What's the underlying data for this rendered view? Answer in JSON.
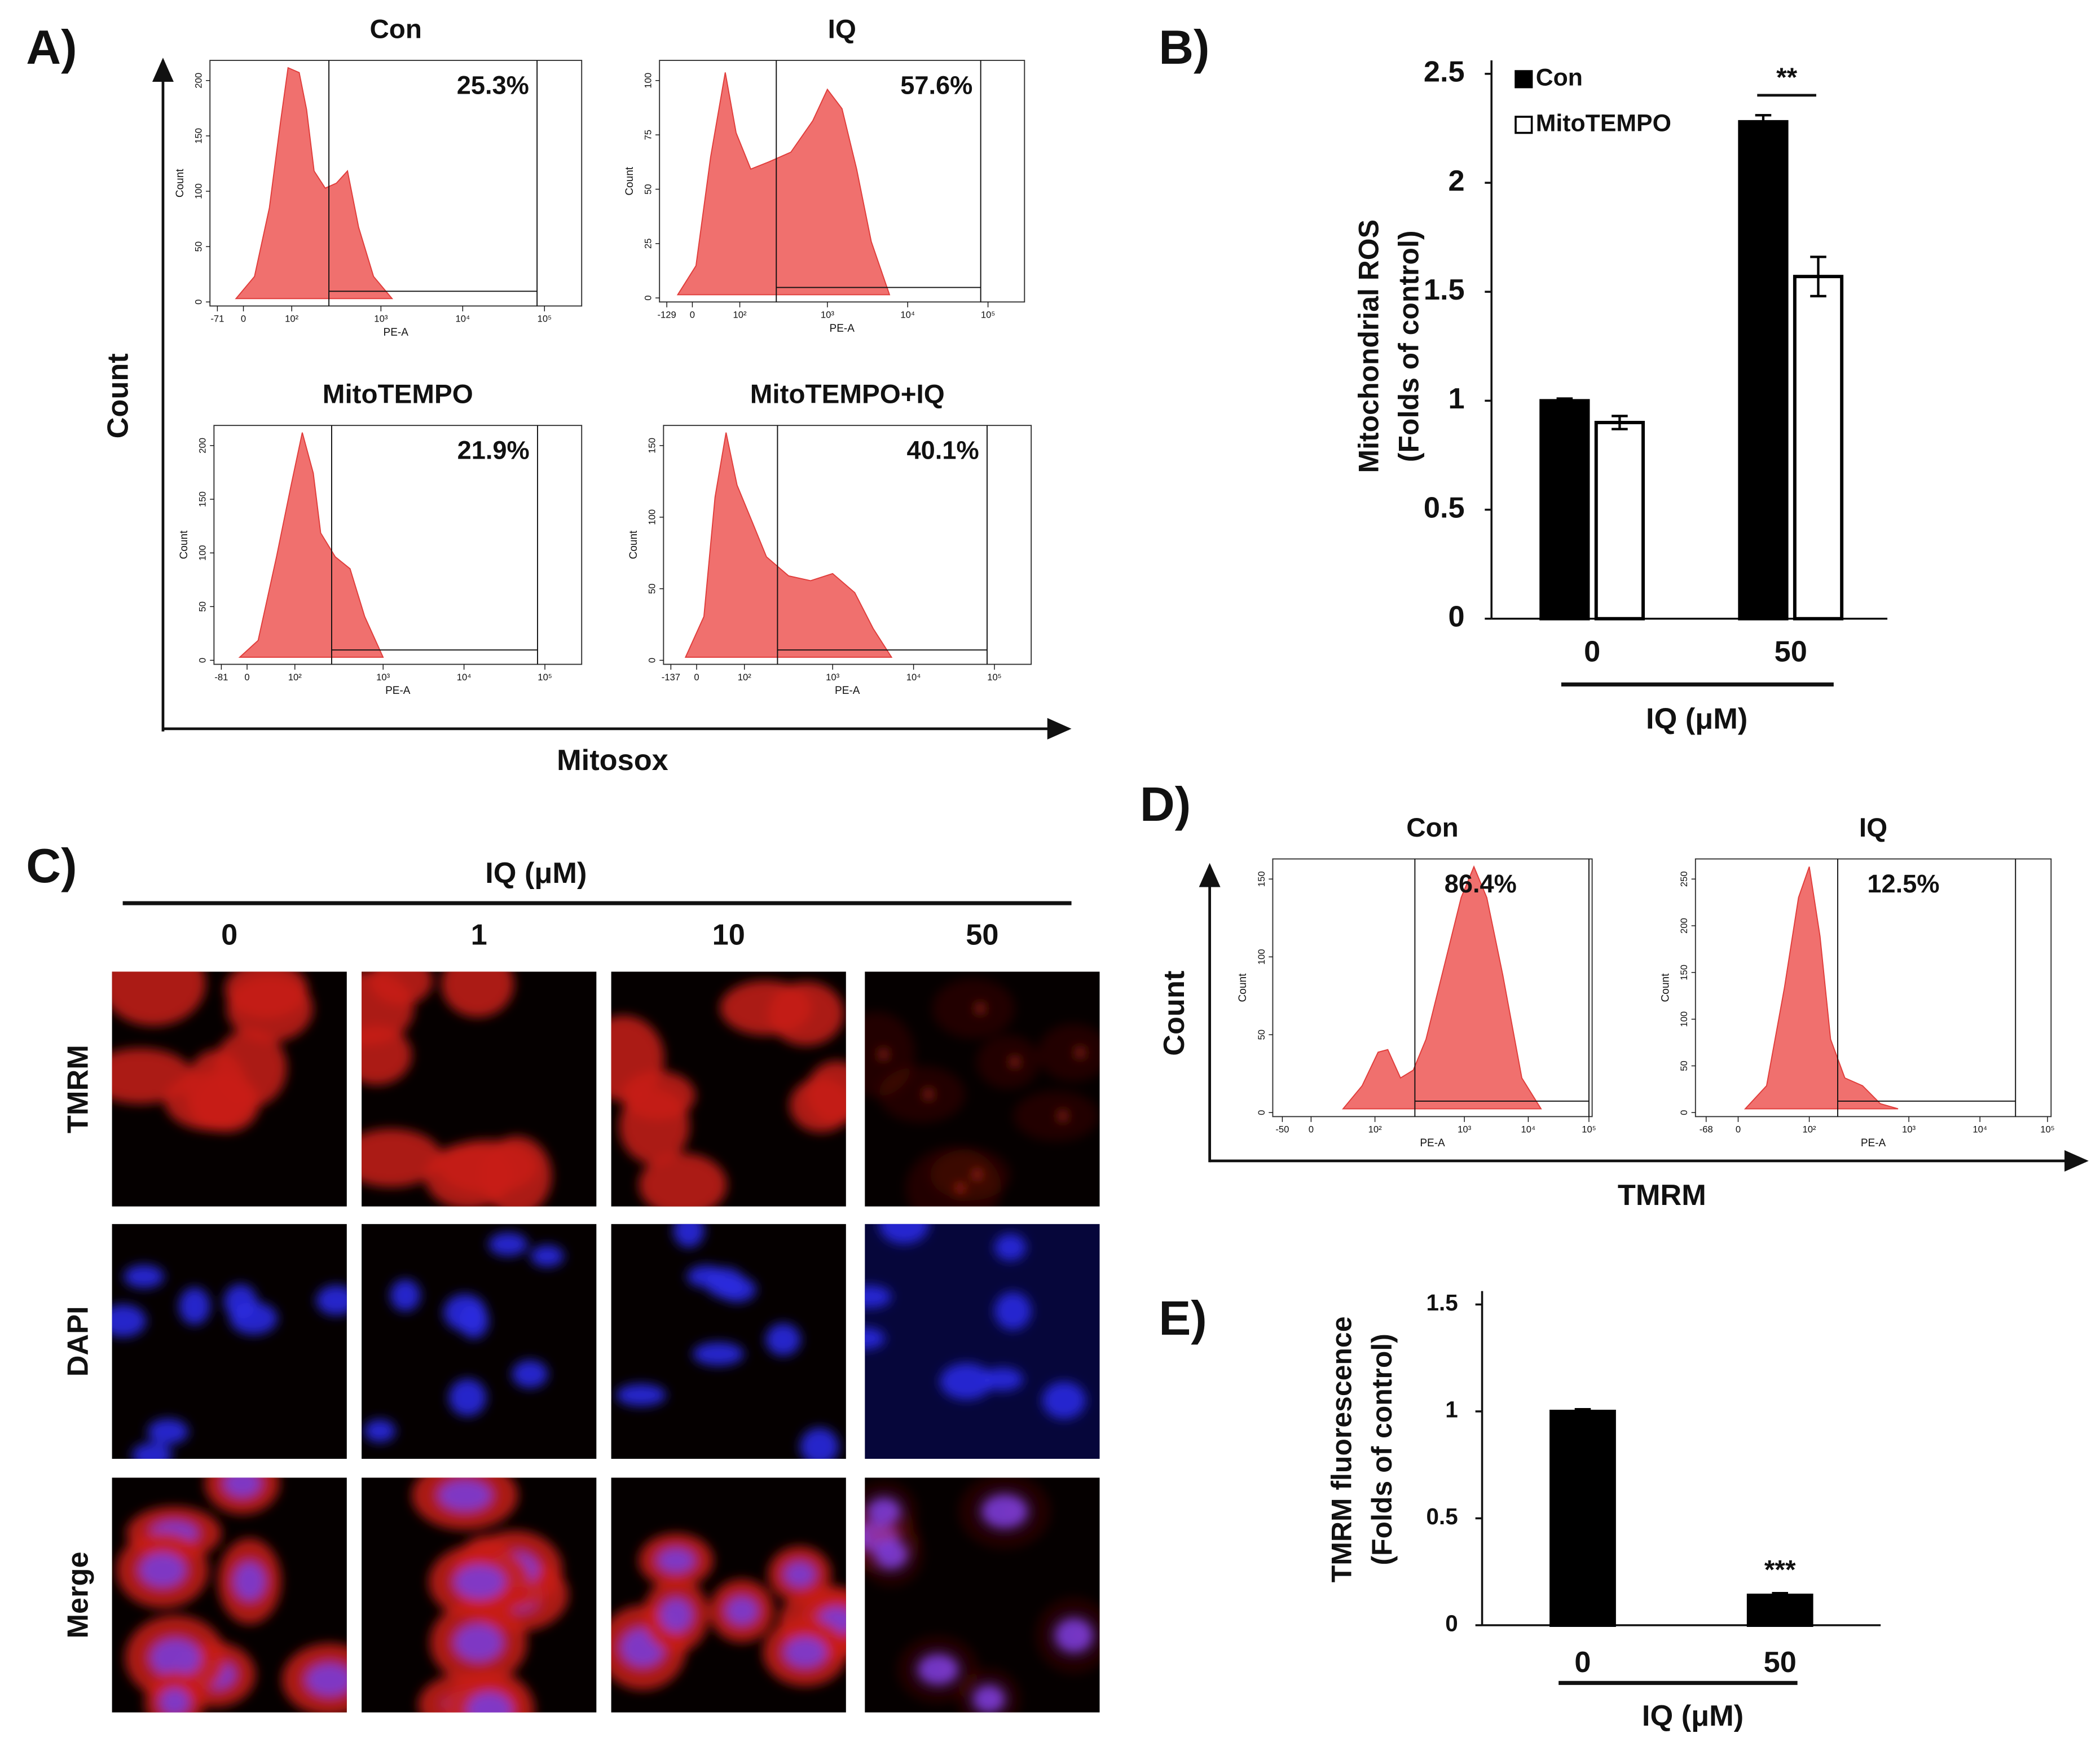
{
  "figure": {
    "panel_a": {
      "label": "A)",
      "ylabel": "Count",
      "xlabel": "Mitosox",
      "plots": [
        {
          "title": "Con",
          "gate": "25.3%",
          "ylabel": "Count",
          "xlabel": "PE-A",
          "yticks": [
            "0",
            "50",
            "100",
            "150",
            "200"
          ],
          "xticks": [
            "-71",
            "0",
            "10²",
            "10³",
            "10⁴",
            "10⁵"
          ]
        },
        {
          "title": "IQ",
          "gate": "57.6%",
          "ylabel": "Count",
          "xlabel": "PE-A",
          "yticks": [
            "0",
            "25",
            "50",
            "75",
            "100"
          ],
          "xticks": [
            "-129",
            "0",
            "10²",
            "10³",
            "10⁴",
            "10⁵"
          ]
        },
        {
          "title": "MitoTEMPO",
          "gate": "21.9%",
          "ylabel": "Count",
          "xlabel": "PE-A",
          "yticks": [
            "0",
            "50",
            "100",
            "150",
            "200"
          ],
          "xticks": [
            "-81",
            "0",
            "10²",
            "10³",
            "10⁴",
            "10⁵"
          ]
        },
        {
          "title": "MitoTEMPO+IQ",
          "gate": "40.1%",
          "ylabel": "Count",
          "xlabel": "PE-A",
          "yticks": [
            "0",
            "50",
            "100",
            "150"
          ],
          "xticks": [
            "-137",
            "0",
            "10²",
            "10³",
            "10⁴",
            "10⁵"
          ]
        }
      ]
    },
    "panel_c": {
      "label": "C)",
      "header": "IQ (μM)",
      "columns": [
        "0",
        "1",
        "10",
        "50"
      ],
      "rows": [
        "TMRM",
        "DAPI",
        "Merge"
      ]
    },
    "panel_d": {
      "label": "D)",
      "ylabel": "Count",
      "xlabel": "TMRM",
      "plots": [
        {
          "title": "Con",
          "gate": "86.4%",
          "ylabel": "Count",
          "xlabel": "PE-A",
          "yticks": [
            "0",
            "50",
            "100",
            "150"
          ],
          "xticks": [
            "-50",
            "0",
            "10²",
            "10³",
            "10⁴",
            "10⁵"
          ]
        },
        {
          "title": "IQ",
          "gate": "12.5%",
          "ylabel": "Count",
          "xlabel": "PE-A",
          "yticks": [
            "0",
            "50",
            "100",
            "150",
            "200",
            "250"
          ],
          "xticks": [
            "-68",
            "0",
            "10²",
            "10³",
            "10⁴",
            "10⁵"
          ]
        }
      ]
    }
  },
  "chart_data": [
    {
      "type": "bar",
      "panel_label": "B)",
      "ylabel": [
        "Mitochondrial ROS",
        "(Folds of control)"
      ],
      "xlabel": "IQ (μM)",
      "categories": [
        "0",
        "50"
      ],
      "series": [
        {
          "name": "Con",
          "color": "#000000",
          "values": [
            1.0,
            2.28
          ],
          "errors": [
            0.01,
            0.03
          ]
        },
        {
          "name": "MitoTEMPO",
          "color": "#ffffff",
          "values": [
            0.9,
            1.57
          ],
          "errors": [
            0.03,
            0.09
          ]
        }
      ],
      "ylim": [
        0,
        2.5
      ],
      "yticks": [
        0,
        0.5,
        1,
        1.5,
        2,
        2.5
      ],
      "annotation": "**",
      "legend": "top-left"
    },
    {
      "type": "bar",
      "panel_label": "E)",
      "ylabel": [
        "TMRM fluorescence",
        "(Folds of control)"
      ],
      "xlabel": "IQ (μM)",
      "categories": [
        "0",
        "50"
      ],
      "series": [
        {
          "name": "Con",
          "color": "#000000",
          "values": [
            1.0,
            0.14
          ],
          "errors": [
            0.01,
            0.01
          ]
        }
      ],
      "ylim": [
        0,
        1.5
      ],
      "yticks": [
        0,
        0.5,
        1,
        1.5
      ],
      "annotation": "***"
    }
  ]
}
